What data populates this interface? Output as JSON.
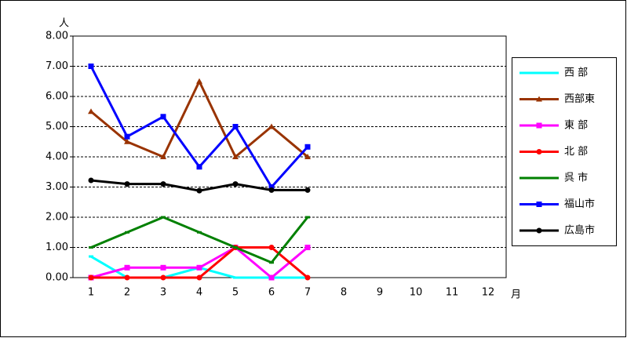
{
  "chart_data": {
    "type": "line",
    "y_unit": "人",
    "x_unit": "月",
    "categories": [
      "1",
      "2",
      "3",
      "4",
      "5",
      "6",
      "7",
      "8",
      "9",
      "10",
      "11",
      "12"
    ],
    "ylim": [
      0,
      8
    ],
    "yticks": [
      {
        "value": 0,
        "label": "0.00"
      },
      {
        "value": 1,
        "label": "1.00"
      },
      {
        "value": 2,
        "label": "2.00"
      },
      {
        "value": 3,
        "label": "3.00"
      },
      {
        "value": 4,
        "label": "4.00"
      },
      {
        "value": 5,
        "label": "5.00"
      },
      {
        "value": 6,
        "label": "6.00"
      },
      {
        "value": 7,
        "label": "7.00"
      },
      {
        "value": 8,
        "label": "8.00"
      }
    ],
    "grid": true,
    "legend": "right",
    "series": [
      {
        "name": "西 部",
        "color": "#00ffff",
        "marker": "dash",
        "values": [
          0.7,
          0,
          0,
          0.33,
          0,
          0,
          0,
          null,
          null,
          null,
          null,
          null
        ]
      },
      {
        "name": "西部東",
        "color": "#993300",
        "marker": "triangle",
        "values": [
          5.5,
          4.5,
          4.0,
          6.5,
          4.0,
          5.0,
          4.0,
          null,
          null,
          null,
          null,
          null
        ]
      },
      {
        "name": "東 部",
        "color": "#ff00ff",
        "marker": "square",
        "values": [
          0,
          0.33,
          0.33,
          0.33,
          1.0,
          0,
          1.0,
          null,
          null,
          null,
          null,
          null
        ]
      },
      {
        "name": "北 部",
        "color": "#ff0000",
        "marker": "circle",
        "values": [
          0,
          0,
          0,
          0,
          1.0,
          1.0,
          0,
          null,
          null,
          null,
          null,
          null
        ]
      },
      {
        "name": "呉 市",
        "color": "#008000",
        "marker": "dash",
        "values": [
          1.0,
          1.5,
          2.0,
          1.5,
          1.0,
          0.5,
          2.0,
          null,
          null,
          null,
          null,
          null
        ]
      },
      {
        "name": "福山市",
        "color": "#0000ff",
        "marker": "square",
        "values": [
          7.0,
          4.67,
          5.33,
          3.67,
          5.0,
          3.0,
          4.33,
          null,
          null,
          null,
          null,
          null
        ]
      },
      {
        "name": "広島市",
        "color": "#000000",
        "marker": "circle",
        "values": [
          3.22,
          3.1,
          3.1,
          2.88,
          3.1,
          2.9,
          2.9,
          null,
          null,
          null,
          null,
          null
        ]
      }
    ]
  }
}
